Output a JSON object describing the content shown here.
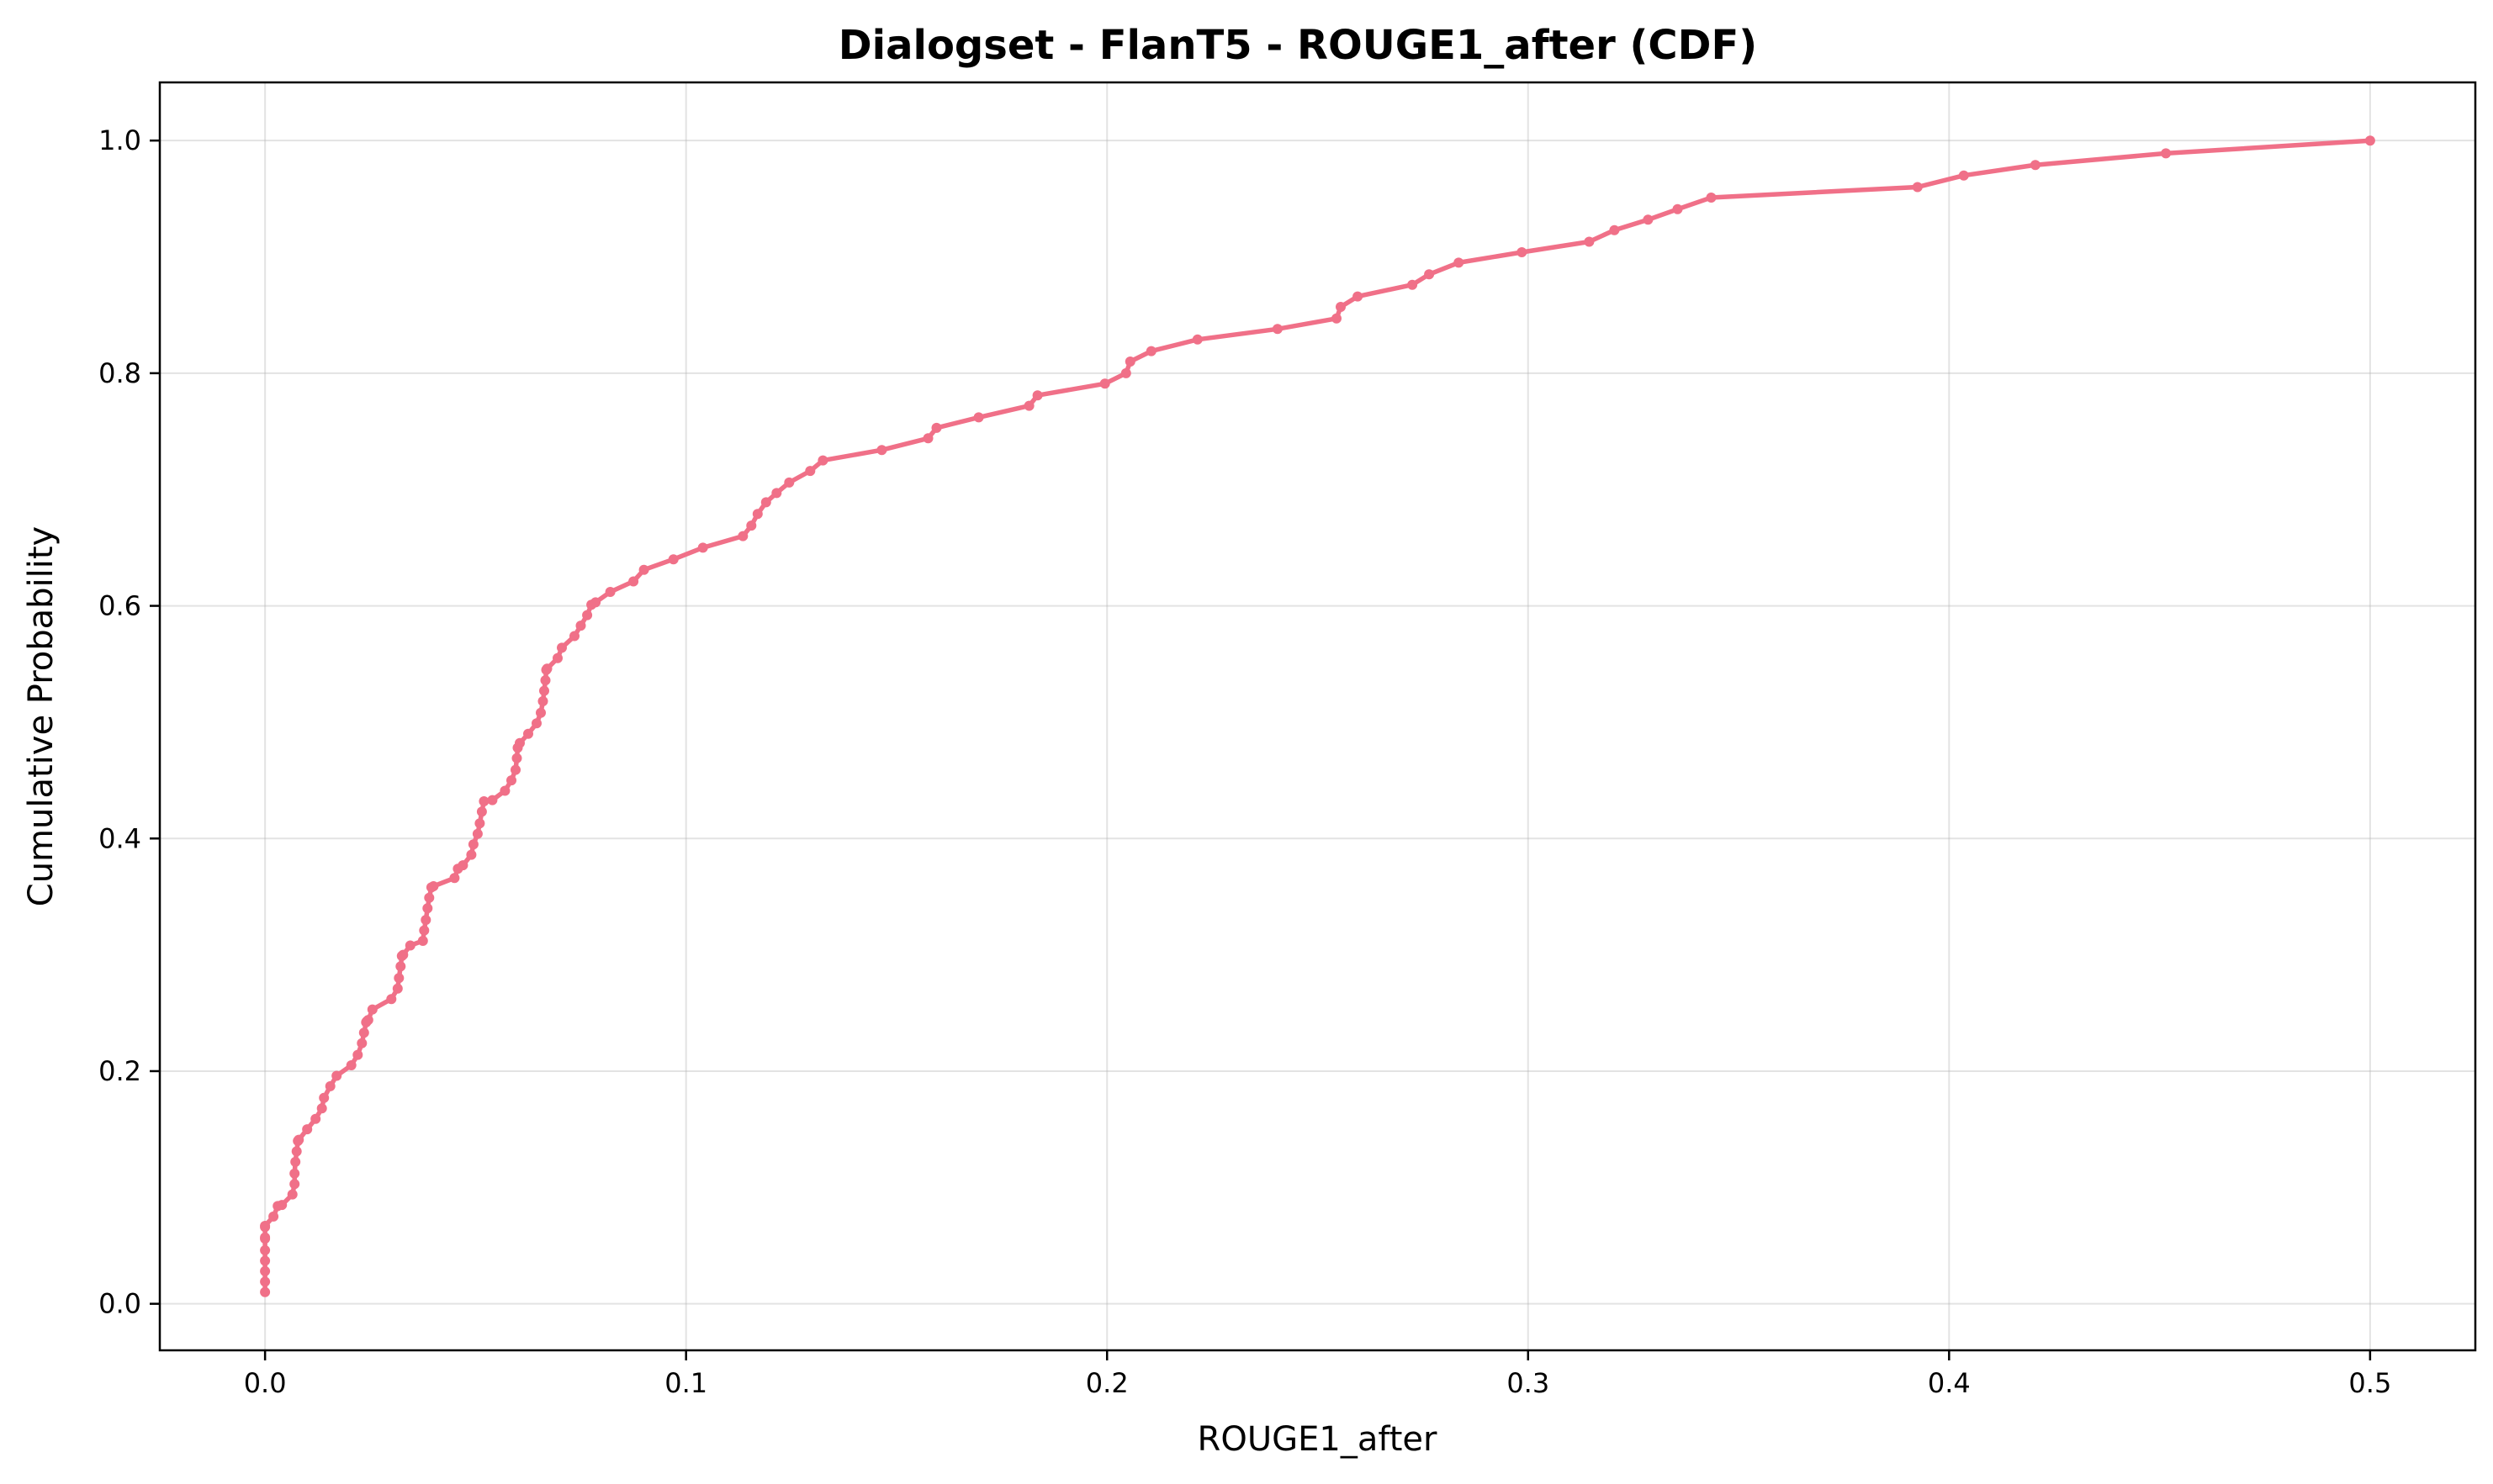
{
  "chart_data": {
    "type": "line",
    "title": "Dialogset - FlanT5 - ROUGE1_after (CDF)",
    "xlabel": "ROUGE1_after",
    "ylabel": "Cumulative Probability",
    "xlim": [
      -0.025,
      0.525
    ],
    "ylim": [
      -0.04,
      1.05
    ],
    "xticks": [
      0.0,
      0.1,
      0.2,
      0.3,
      0.4,
      0.5
    ],
    "xtick_labels": [
      "0.0",
      "0.1",
      "0.2",
      "0.3",
      "0.4",
      "0.5"
    ],
    "yticks": [
      0.0,
      0.2,
      0.4,
      0.6,
      0.8,
      1.0
    ],
    "ytick_labels": [
      "0.0",
      "0.2",
      "0.4",
      "0.6",
      "0.8",
      "1.0"
    ],
    "grid": true,
    "line_color": "#f07088",
    "series": [
      {
        "x": [
          0.0,
          0.0,
          0.0,
          0.0,
          0.0,
          0.0,
          0.0,
          0.0,
          0.0,
          0.002,
          0.003,
          0.004,
          0.0065,
          0.007,
          0.007,
          0.0072,
          0.0075,
          0.0078,
          0.008,
          0.01,
          0.012,
          0.0135,
          0.014,
          0.0155,
          0.017,
          0.0205,
          0.022,
          0.023,
          0.0235,
          0.024,
          0.0242,
          0.0245,
          0.0255,
          0.03,
          0.0315,
          0.0318,
          0.0322,
          0.0325,
          0.0328,
          0.0345,
          0.0375,
          0.0378,
          0.0382,
          0.0386,
          0.039,
          0.0395,
          0.04,
          0.045,
          0.0458,
          0.047,
          0.049,
          0.0495,
          0.0505,
          0.051,
          0.0515,
          0.052,
          0.054,
          0.057,
          0.0585,
          0.0595,
          0.0598,
          0.06,
          0.0605,
          0.0625,
          0.0645,
          0.0655,
          0.066,
          0.0663,
          0.0666,
          0.0668,
          0.067,
          0.0695,
          0.0705,
          0.0735,
          0.075,
          0.0765,
          0.0775,
          0.0785,
          0.082,
          0.0875,
          0.09,
          0.097,
          0.104,
          0.1135,
          0.1155,
          0.117,
          0.119,
          0.1215,
          0.1245,
          0.1295,
          0.1325,
          0.1465,
          0.1575,
          0.1595,
          0.1695,
          0.1815,
          0.1835,
          0.1995,
          0.2045,
          0.2055,
          0.2105,
          0.2215,
          0.2405,
          0.2545,
          0.2555,
          0.2595,
          0.2725,
          0.2765,
          0.2835,
          0.2985,
          0.3145,
          0.3205,
          0.3285,
          0.3355,
          0.3435,
          0.3925,
          0.4035,
          0.4205,
          0.4515,
          0.5
        ],
        "y": [
          0.01,
          0.019,
          0.028,
          0.037,
          0.046,
          0.056,
          0.057,
          0.066,
          0.067,
          0.075,
          0.084,
          0.085,
          0.094,
          0.103,
          0.112,
          0.122,
          0.131,
          0.14,
          0.141,
          0.15,
          0.159,
          0.168,
          0.177,
          0.187,
          0.196,
          0.205,
          0.214,
          0.224,
          0.233,
          0.242,
          0.243,
          0.244,
          0.253,
          0.262,
          0.271,
          0.28,
          0.29,
          0.299,
          0.3,
          0.308,
          0.312,
          0.321,
          0.33,
          0.34,
          0.349,
          0.358,
          0.359,
          0.366,
          0.374,
          0.377,
          0.386,
          0.395,
          0.404,
          0.413,
          0.423,
          0.432,
          0.433,
          0.441,
          0.45,
          0.459,
          0.469,
          0.478,
          0.482,
          0.49,
          0.499,
          0.508,
          0.518,
          0.527,
          0.536,
          0.545,
          0.546,
          0.555,
          0.564,
          0.574,
          0.583,
          0.592,
          0.601,
          0.603,
          0.612,
          0.621,
          0.631,
          0.64,
          0.65,
          0.66,
          0.669,
          0.679,
          0.689,
          0.697,
          0.706,
          0.716,
          0.725,
          0.734,
          0.744,
          0.753,
          0.762,
          0.772,
          0.781,
          0.791,
          0.8,
          0.81,
          0.819,
          0.829,
          0.838,
          0.847,
          0.857,
          0.866,
          0.876,
          0.885,
          0.895,
          0.904,
          0.913,
          0.923,
          0.932,
          0.941,
          0.951,
          0.96,
          0.97,
          0.979,
          0.989,
          1.0
        ]
      }
    ]
  }
}
